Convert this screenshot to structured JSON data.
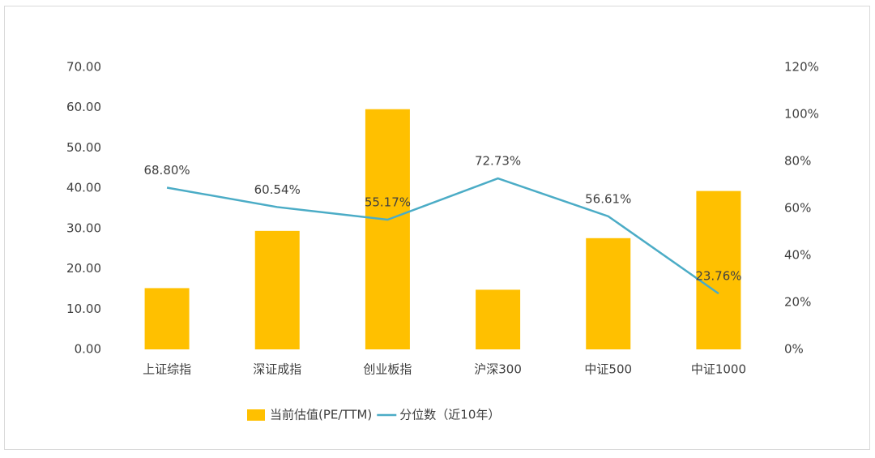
{
  "chart_data": {
    "type": "bar",
    "categories": [
      "上证综指",
      "深证成指",
      "创业板指",
      "沪深300",
      "中证500",
      "中证1000"
    ],
    "series": [
      {
        "name": "当前估值(PE/TTM)",
        "type": "bar",
        "color": "#ffc000",
        "values": [
          15.2,
          29.4,
          59.6,
          14.8,
          27.6,
          39.3
        ]
      },
      {
        "name": "分位数（近10年）",
        "type": "line",
        "axis": "y2",
        "color": "#4bacc6",
        "values": [
          68.8,
          60.54,
          55.17,
          72.73,
          56.61,
          23.76
        ],
        "value_labels": [
          "68.80%",
          "60.54%",
          "55.17%",
          "72.73%",
          "56.61%",
          "23.76%"
        ]
      }
    ],
    "ylim": [
      0,
      70
    ],
    "yticks": [
      {
        "value": 0,
        "label": "0.00"
      },
      {
        "value": 10,
        "label": "10.00"
      },
      {
        "value": 20,
        "label": "20.00"
      },
      {
        "value": 30,
        "label": "30.00"
      },
      {
        "value": 40,
        "label": "40.00"
      },
      {
        "value": 50,
        "label": "50.00"
      },
      {
        "value": 60,
        "label": "60.00"
      },
      {
        "value": 70,
        "label": "70.00"
      }
    ],
    "y2lim": [
      0,
      120
    ],
    "y2ticks": [
      {
        "value": 0,
        "label": "0%"
      },
      {
        "value": 20,
        "label": "20%"
      },
      {
        "value": 40,
        "label": "40%"
      },
      {
        "value": 60,
        "label": "60%"
      },
      {
        "value": 80,
        "label": "80%"
      },
      {
        "value": 100,
        "label": "100%"
      },
      {
        "value": 120,
        "label": "120%"
      }
    ],
    "legend": "bottom",
    "grid": false
  }
}
